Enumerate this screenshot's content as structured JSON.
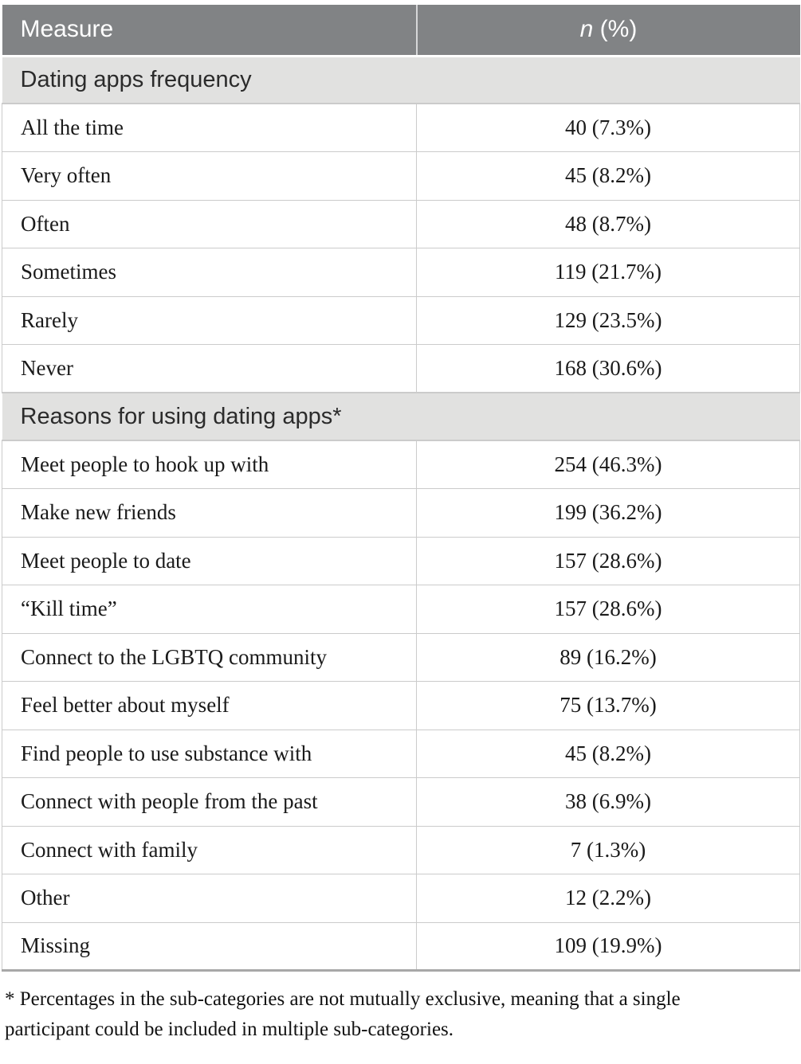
{
  "table": {
    "columns": [
      {
        "label": "Measure"
      },
      {
        "label_italic": "n",
        "label_rest": " (%)"
      }
    ],
    "sections": [
      {
        "title": "Dating apps frequency",
        "rows": [
          {
            "label": "All the time",
            "value": "40 (7.3%)"
          },
          {
            "label": "Very often",
            "value": "45 (8.2%)"
          },
          {
            "label": "Often",
            "value": "48 (8.7%)"
          },
          {
            "label": "Sometimes",
            "value": "119 (21.7%)"
          },
          {
            "label": "Rarely",
            "value": "129 (23.5%)"
          },
          {
            "label": "Never",
            "value": "168 (30.6%)"
          }
        ]
      },
      {
        "title": "Reasons for using dating apps*",
        "rows": [
          {
            "label": "Meet people to hook up with",
            "value": "254 (46.3%)"
          },
          {
            "label": "Make new friends",
            "value": "199 (36.2%)"
          },
          {
            "label": "Meet people to date",
            "value": "157 (28.6%)"
          },
          {
            "label": "“Kill time”",
            "value": "157 (28.6%)"
          },
          {
            "label": "Connect to the LGBTQ community",
            "value": "89 (16.2%)"
          },
          {
            "label": "Feel better about myself",
            "value": "75 (13.7%)"
          },
          {
            "label": "Find people to use substance with",
            "value": "45 (8.2%)"
          },
          {
            "label": "Connect with people from the past",
            "value": "38 (6.9%)"
          },
          {
            "label": "Connect with family",
            "value": "7 (1.3%)"
          },
          {
            "label": "Other",
            "value": "12 (2.2%)"
          },
          {
            "label": "Missing",
            "value": "109 (19.9%)"
          }
        ]
      }
    ],
    "footnote": "* Percentages in the sub-categories are not mutually exclusive, meaning that a single participant could be included in multiple sub-categories.",
    "colors": {
      "header_background": "#818385",
      "header_text": "#ffffff",
      "section_background": "#e1e1e0",
      "grid_line": "#cbcbcb",
      "body_text": "#1a1a1a"
    }
  }
}
